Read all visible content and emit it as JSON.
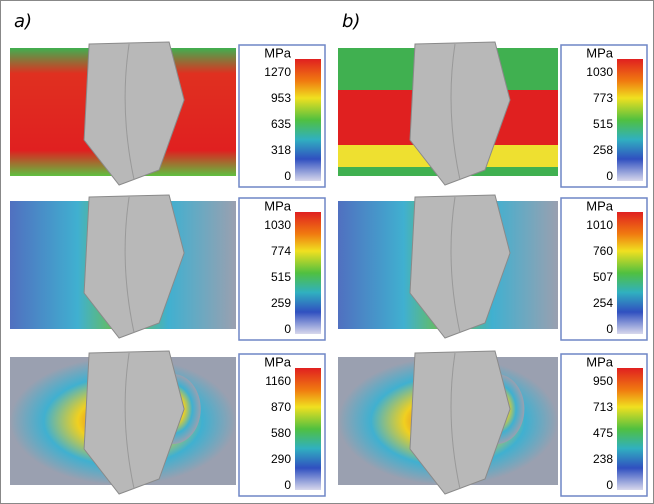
{
  "columns": [
    {
      "label": "a)",
      "panels": [
        {
          "unit": "MPa",
          "ticks": [
            1270,
            953,
            635,
            318,
            0
          ]
        },
        {
          "unit": "MPa",
          "ticks": [
            1030,
            774,
            515,
            259,
            0
          ]
        },
        {
          "unit": "MPa",
          "ticks": [
            1160,
            870,
            580,
            290,
            0
          ]
        }
      ]
    },
    {
      "label": "b)",
      "panels": [
        {
          "unit": "MPa",
          "ticks": [
            1030,
            773,
            515,
            258,
            0
          ]
        },
        {
          "unit": "MPa",
          "ticks": [
            1010,
            760,
            507,
            254,
            0
          ]
        },
        {
          "unit": "MPa",
          "ticks": [
            950,
            713,
            475,
            238,
            0
          ]
        }
      ]
    }
  ]
}
